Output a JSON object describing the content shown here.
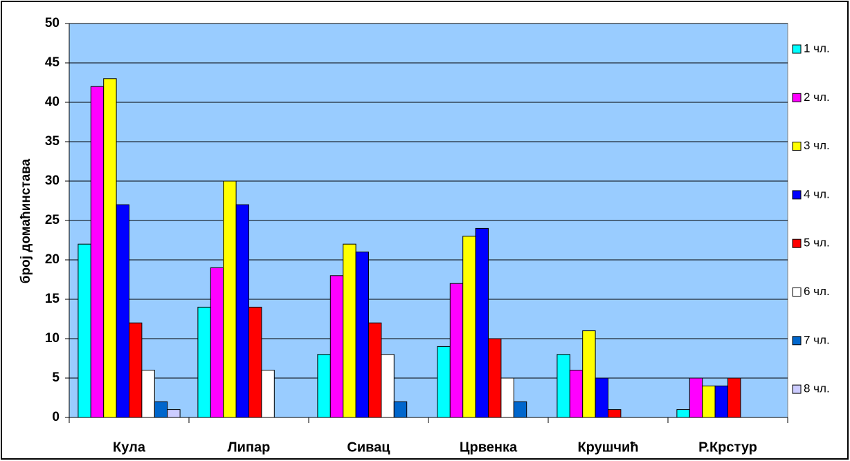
{
  "chart_data": {
    "type": "bar",
    "ylabel": "број домаћинстава",
    "categories": [
      "Кула",
      "Липар",
      "Сивац",
      "Црвенка",
      "Крушчић",
      "Р.Крстур"
    ],
    "series": [
      {
        "name": "1 чл.",
        "color": "#00ffff",
        "values": [
          22,
          14,
          8,
          9,
          8,
          1
        ]
      },
      {
        "name": "2 чл.",
        "color": "#ff00ff",
        "values": [
          42,
          19,
          18,
          17,
          6,
          5
        ]
      },
      {
        "name": "3 чл.",
        "color": "#ffff00",
        "values": [
          43,
          30,
          22,
          23,
          11,
          4
        ]
      },
      {
        "name": "4 чл.",
        "color": "#0000ff",
        "values": [
          27,
          27,
          21,
          24,
          5,
          4
        ]
      },
      {
        "name": "5 чл.",
        "color": "#ff0000",
        "values": [
          12,
          14,
          12,
          10,
          1,
          5
        ]
      },
      {
        "name": "6 чл.",
        "color": "#ffffff",
        "values": [
          6,
          6,
          8,
          5,
          0,
          0
        ]
      },
      {
        "name": "7 чл.",
        "color": "#0066cc",
        "values": [
          2,
          0,
          2,
          2,
          0,
          0
        ]
      },
      {
        "name": "8 чл.",
        "color": "#ccccff",
        "values": [
          1,
          0,
          0,
          0,
          0,
          0
        ]
      }
    ],
    "ylim": [
      0,
      50
    ],
    "yticks": [
      0,
      5,
      10,
      15,
      20,
      25,
      30,
      35,
      40,
      45,
      50
    ],
    "grid": true,
    "legend": "right",
    "background": "#99ccff"
  }
}
